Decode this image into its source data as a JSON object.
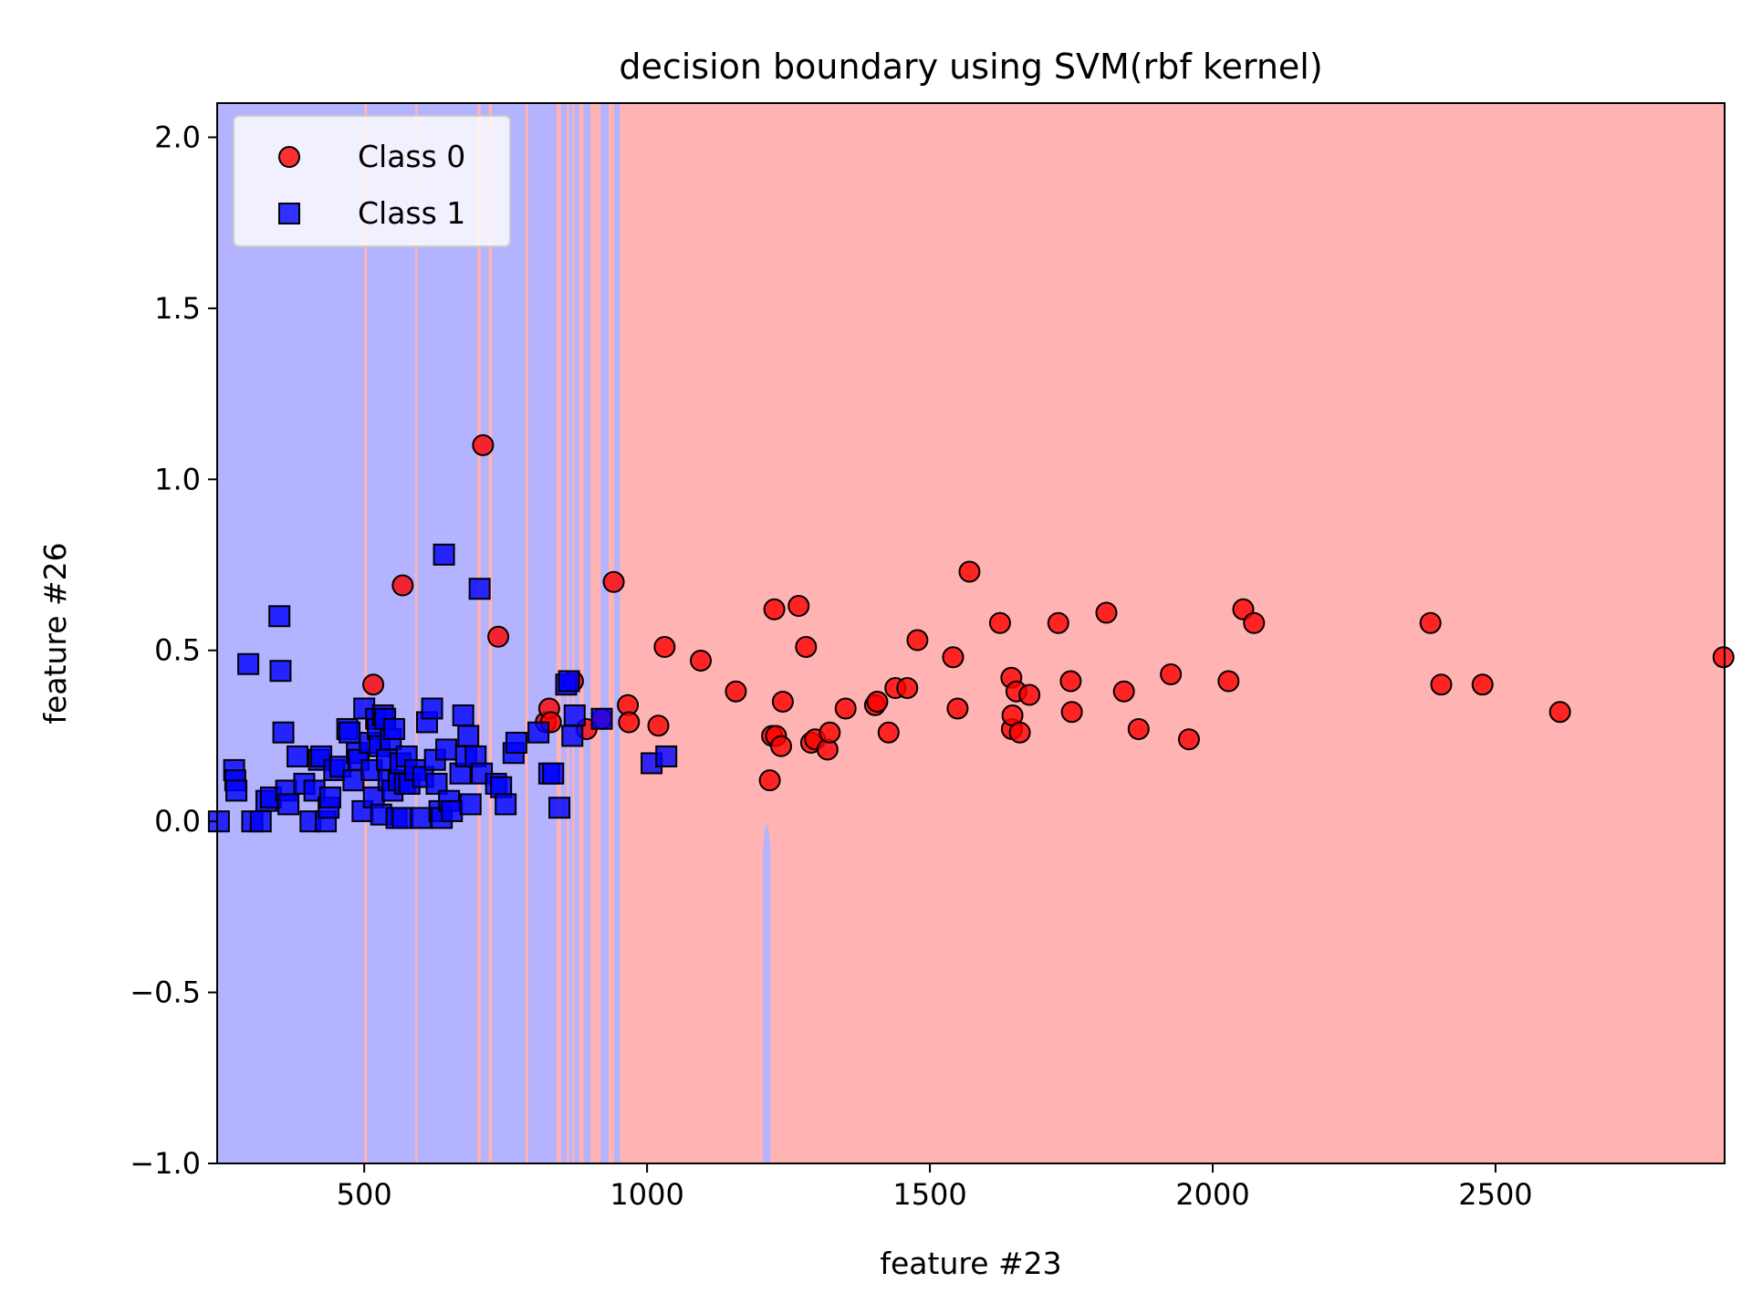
{
  "chart_data": {
    "type": "scatter",
    "title": "decision boundary using SVM(rbf kernel)",
    "xlabel": "feature #23",
    "ylabel": "feature #26",
    "xlim": [
      240,
      2905
    ],
    "ylim": [
      -1.0,
      2.1
    ],
    "xticks": [
      500,
      1000,
      1500,
      2000,
      2500
    ],
    "xtick_labels": [
      "500",
      "1000",
      "1500",
      "2000",
      "2500"
    ],
    "yticks": [
      -1.0,
      -0.5,
      0.0,
      0.5,
      1.0,
      1.5,
      2.0
    ],
    "ytick_labels": [
      "−1.0",
      "−0.5",
      "0.0",
      "0.5",
      "1.0",
      "1.5",
      "2.0"
    ],
    "grid": false,
    "legend_position": "top-left",
    "region_colors": {
      "class_0": "#ffb3b3",
      "class_1": "#b3b3ff"
    },
    "decision_regions": {
      "class_1_bands_x": [
        [
          240,
          785
        ],
        [
          790,
          840
        ],
        [
          848,
          858
        ],
        [
          862,
          868
        ],
        [
          872,
          880
        ],
        [
          888,
          900
        ],
        [
          918,
          932
        ],
        [
          942,
          952
        ],
        [
          1205,
          1218
        ]
      ],
      "class_0_stripes_x": [
        [
          500,
          505
        ],
        [
          590,
          594
        ],
        [
          700,
          706
        ],
        [
          720,
          726
        ]
      ],
      "spike_x": [
        1205,
        1218
      ],
      "spike_top_y": 0.0
    },
    "series": [
      {
        "name": "Class 0",
        "marker": "circle",
        "color": "#ff0000",
        "points": [
          [
            516,
            0.4
          ],
          [
            568,
            0.69
          ],
          [
            710,
            1.1
          ],
          [
            737,
            0.54
          ],
          [
            821,
            0.29
          ],
          [
            827,
            0.33
          ],
          [
            830,
            0.29
          ],
          [
            869,
            0.41
          ],
          [
            893,
            0.27
          ],
          [
            920,
            0.3
          ],
          [
            941,
            0.7
          ],
          [
            966,
            0.34
          ],
          [
            968,
            0.29
          ],
          [
            1020,
            0.28
          ],
          [
            1031,
            0.51
          ],
          [
            1095,
            0.47
          ],
          [
            1157,
            0.38
          ],
          [
            1217,
            0.12
          ],
          [
            1221,
            0.25
          ],
          [
            1225,
            0.62
          ],
          [
            1228,
            0.25
          ],
          [
            1237,
            0.22
          ],
          [
            1240,
            0.35
          ],
          [
            1268,
            0.63
          ],
          [
            1281,
            0.51
          ],
          [
            1290,
            0.23
          ],
          [
            1297,
            0.24
          ],
          [
            1319,
            0.21
          ],
          [
            1323,
            0.26
          ],
          [
            1351,
            0.33
          ],
          [
            1403,
            0.34
          ],
          [
            1407,
            0.35
          ],
          [
            1427,
            0.26
          ],
          [
            1439,
            0.39
          ],
          [
            1460,
            0.39
          ],
          [
            1478,
            0.53
          ],
          [
            1541,
            0.48
          ],
          [
            1549,
            0.33
          ],
          [
            1570,
            0.73
          ],
          [
            1624,
            0.58
          ],
          [
            1644,
            0.42
          ],
          [
            1645,
            0.27
          ],
          [
            1646,
            0.31
          ],
          [
            1653,
            0.38
          ],
          [
            1659,
            0.26
          ],
          [
            1676,
            0.37
          ],
          [
            1727,
            0.58
          ],
          [
            1749,
            0.41
          ],
          [
            1751,
            0.32
          ],
          [
            1812,
            0.61
          ],
          [
            1843,
            0.38
          ],
          [
            1869,
            0.27
          ],
          [
            1926,
            0.43
          ],
          [
            1958,
            0.24
          ],
          [
            2028,
            0.41
          ],
          [
            2054,
            0.62
          ],
          [
            2073,
            0.58
          ],
          [
            2385,
            0.58
          ],
          [
            2404,
            0.4
          ],
          [
            2477,
            0.4
          ],
          [
            2614,
            0.32
          ],
          [
            2903,
            0.48
          ]
        ]
      },
      {
        "name": "Class 1",
        "marker": "square",
        "color": "#0000ff",
        "points": [
          [
            243,
            0.0
          ],
          [
            270,
            0.15
          ],
          [
            272,
            0.12
          ],
          [
            274,
            0.09
          ],
          [
            295,
            0.46
          ],
          [
            302,
            0.0
          ],
          [
            317,
            0.0
          ],
          [
            327,
            0.06
          ],
          [
            335,
            0.07
          ],
          [
            350,
            0.6
          ],
          [
            352,
            0.44
          ],
          [
            357,
            0.26
          ],
          [
            362,
            0.09
          ],
          [
            366,
            0.05
          ],
          [
            382,
            0.19
          ],
          [
            394,
            0.11
          ],
          [
            405,
            0.0
          ],
          [
            412,
            0.09
          ],
          [
            420,
            0.18
          ],
          [
            424,
            0.19
          ],
          [
            432,
            0.0
          ],
          [
            437,
            0.04
          ],
          [
            440,
            0.07
          ],
          [
            447,
            0.15
          ],
          [
            458,
            0.16
          ],
          [
            470,
            0.27
          ],
          [
            474,
            0.26
          ],
          [
            481,
            0.12
          ],
          [
            487,
            0.2
          ],
          [
            490,
            0.18
          ],
          [
            497,
            0.03
          ],
          [
            500,
            0.33
          ],
          [
            510,
            0.23
          ],
          [
            513,
            0.15
          ],
          [
            517,
            0.07
          ],
          [
            521,
            0.3
          ],
          [
            524,
            0.27
          ],
          [
            527,
            0.22
          ],
          [
            530,
            0.02
          ],
          [
            533,
            0.31
          ],
          [
            537,
            0.3
          ],
          [
            540,
            0.18
          ],
          [
            543,
            0.12
          ],
          [
            547,
            0.24
          ],
          [
            550,
            0.09
          ],
          [
            553,
            0.27
          ],
          [
            557,
            0.01
          ],
          [
            561,
            0.12
          ],
          [
            564,
            0.17
          ],
          [
            568,
            0.01
          ],
          [
            572,
            0.11
          ],
          [
            575,
            0.19
          ],
          [
            580,
            0.11
          ],
          [
            590,
            0.15
          ],
          [
            600,
            0.01
          ],
          [
            604,
            0.13
          ],
          [
            611,
            0.29
          ],
          [
            620,
            0.33
          ],
          [
            625,
            0.18
          ],
          [
            628,
            0.11
          ],
          [
            633,
            0.03
          ],
          [
            637,
            0.01
          ],
          [
            641,
            0.78
          ],
          [
            645,
            0.21
          ],
          [
            650,
            0.06
          ],
          [
            655,
            0.03
          ],
          [
            670,
            0.14
          ],
          [
            675,
            0.31
          ],
          [
            680,
            0.19
          ],
          [
            684,
            0.25
          ],
          [
            688,
            0.05
          ],
          [
            697,
            0.19
          ],
          [
            704,
            0.68
          ],
          [
            708,
            0.14
          ],
          [
            733,
            0.11
          ],
          [
            742,
            0.1
          ],
          [
            750,
            0.05
          ],
          [
            764,
            0.2
          ],
          [
            769,
            0.23
          ],
          [
            808,
            0.26
          ],
          [
            827,
            0.14
          ],
          [
            834,
            0.14
          ],
          [
            845,
            0.04
          ],
          [
            857,
            0.4
          ],
          [
            862,
            0.41
          ],
          [
            868,
            0.25
          ],
          [
            872,
            0.31
          ],
          [
            920,
            0.3
          ],
          [
            1008,
            0.17
          ],
          [
            1034,
            0.19
          ]
        ]
      }
    ]
  }
}
